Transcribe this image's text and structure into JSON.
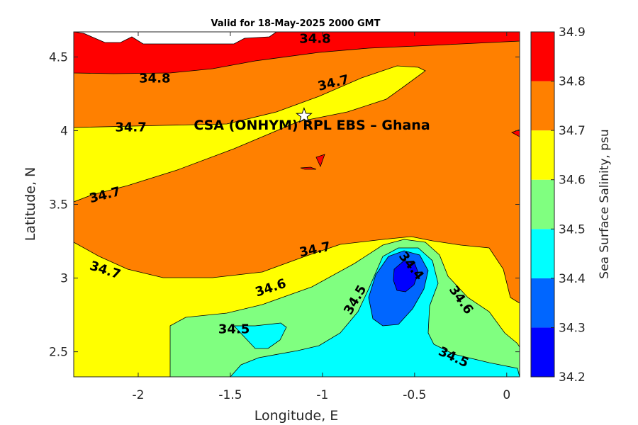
{
  "chart_data": {
    "type": "contour",
    "title": "Valid for 18-May-2025 2000 GMT",
    "xlabel": "Longitude, E",
    "ylabel": "Latitude, N",
    "xlim": [
      -2.35,
      0.07
    ],
    "ylim": [
      2.33,
      4.67
    ],
    "xticks": [
      -2,
      -1.5,
      -1,
      -0.5,
      0
    ],
    "xtick_labels": [
      "-2",
      "-1.5",
      "-1",
      "-0.5",
      "0"
    ],
    "yticks": [
      2.5,
      3,
      3.5,
      4,
      4.5
    ],
    "ytick_labels": [
      "2.5",
      "3",
      "3.5",
      "4",
      "4.5"
    ],
    "colorbar": {
      "label": "Sea Surface Salinity, psu",
      "levels": [
        34.2,
        34.3,
        34.4,
        34.5,
        34.6,
        34.7,
        34.8,
        34.9
      ],
      "level_labels": [
        "34.2",
        "34.3",
        "34.4",
        "34.5",
        "34.6",
        "34.7",
        "34.8",
        "34.9"
      ],
      "colors": [
        "#0000ff",
        "#0066ff",
        "#00ffff",
        "#80ff80",
        "#ffff00",
        "#ff8000",
        "#ff0000"
      ]
    },
    "contour_labels": [
      {
        "text": "34.8",
        "lon": -1.04,
        "lat": 4.62,
        "angle": 0
      },
      {
        "text": "34.8",
        "lon": -1.91,
        "lat": 4.35,
        "angle": 0
      },
      {
        "text": "34.7",
        "lon": -0.94,
        "lat": 4.32,
        "angle": -14
      },
      {
        "text": "34.7",
        "lon": -2.04,
        "lat": 4.02,
        "angle": 0
      },
      {
        "text": "34.7",
        "lon": -2.18,
        "lat": 3.56,
        "angle": -14
      },
      {
        "text": "34.7",
        "lon": -1.04,
        "lat": 3.19,
        "angle": -12
      },
      {
        "text": "34.7",
        "lon": -2.18,
        "lat": 3.05,
        "angle": 18
      },
      {
        "text": "34.6",
        "lon": -1.28,
        "lat": 2.93,
        "angle": -18
      },
      {
        "text": "34.5",
        "lon": -0.82,
        "lat": 2.85,
        "angle": -60
      },
      {
        "text": "34.4",
        "lon": -0.52,
        "lat": 3.08,
        "angle": 52
      },
      {
        "text": "34.6",
        "lon": -0.25,
        "lat": 2.85,
        "angle": 55
      },
      {
        "text": "34.5",
        "lon": -0.29,
        "lat": 2.46,
        "angle": 25
      },
      {
        "text": "34.5",
        "lon": -1.48,
        "lat": 2.65,
        "angle": 0
      }
    ],
    "annotation": {
      "text": "CSA (ONHYM) RPL EBS  – Ghana",
      "lon": -1.1,
      "lat": 4.1,
      "marker": "star"
    }
  }
}
